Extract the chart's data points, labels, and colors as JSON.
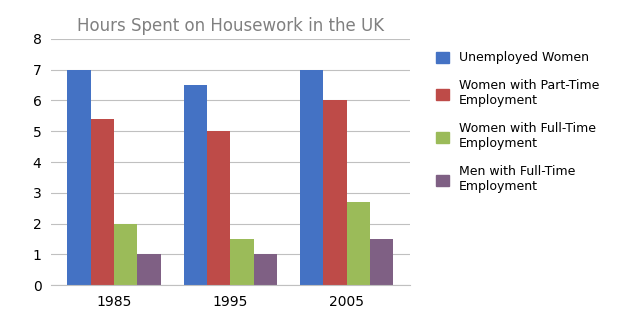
{
  "title": "Hours Spent on Housework in the UK",
  "categories": [
    "1985",
    "1995",
    "2005"
  ],
  "series": [
    {
      "label": "Unemployed Women",
      "values": [
        7.0,
        6.5,
        7.0
      ],
      "color": "#4472C4"
    },
    {
      "label": "Women with Part-Time\nEmployment",
      "values": [
        5.4,
        5.0,
        6.0
      ],
      "color": "#BE4B48"
    },
    {
      "label": "Women with Full-Time\nEmployment",
      "values": [
        2.0,
        1.5,
        2.7
      ],
      "color": "#9BBB59"
    },
    {
      "label": "Men with Full-Time\nEmployment",
      "values": [
        1.0,
        1.0,
        1.5
      ],
      "color": "#7F6084"
    }
  ],
  "ylim": [
    0,
    8
  ],
  "yticks": [
    0,
    1,
    2,
    3,
    4,
    5,
    6,
    7,
    8
  ],
  "bar_width": 0.2,
  "title_color": "#808080",
  "title_fontsize": 12,
  "tick_fontsize": 10,
  "legend_fontsize": 9,
  "background_color": "#FFFFFF",
  "grid_color": "#C0C0C0"
}
